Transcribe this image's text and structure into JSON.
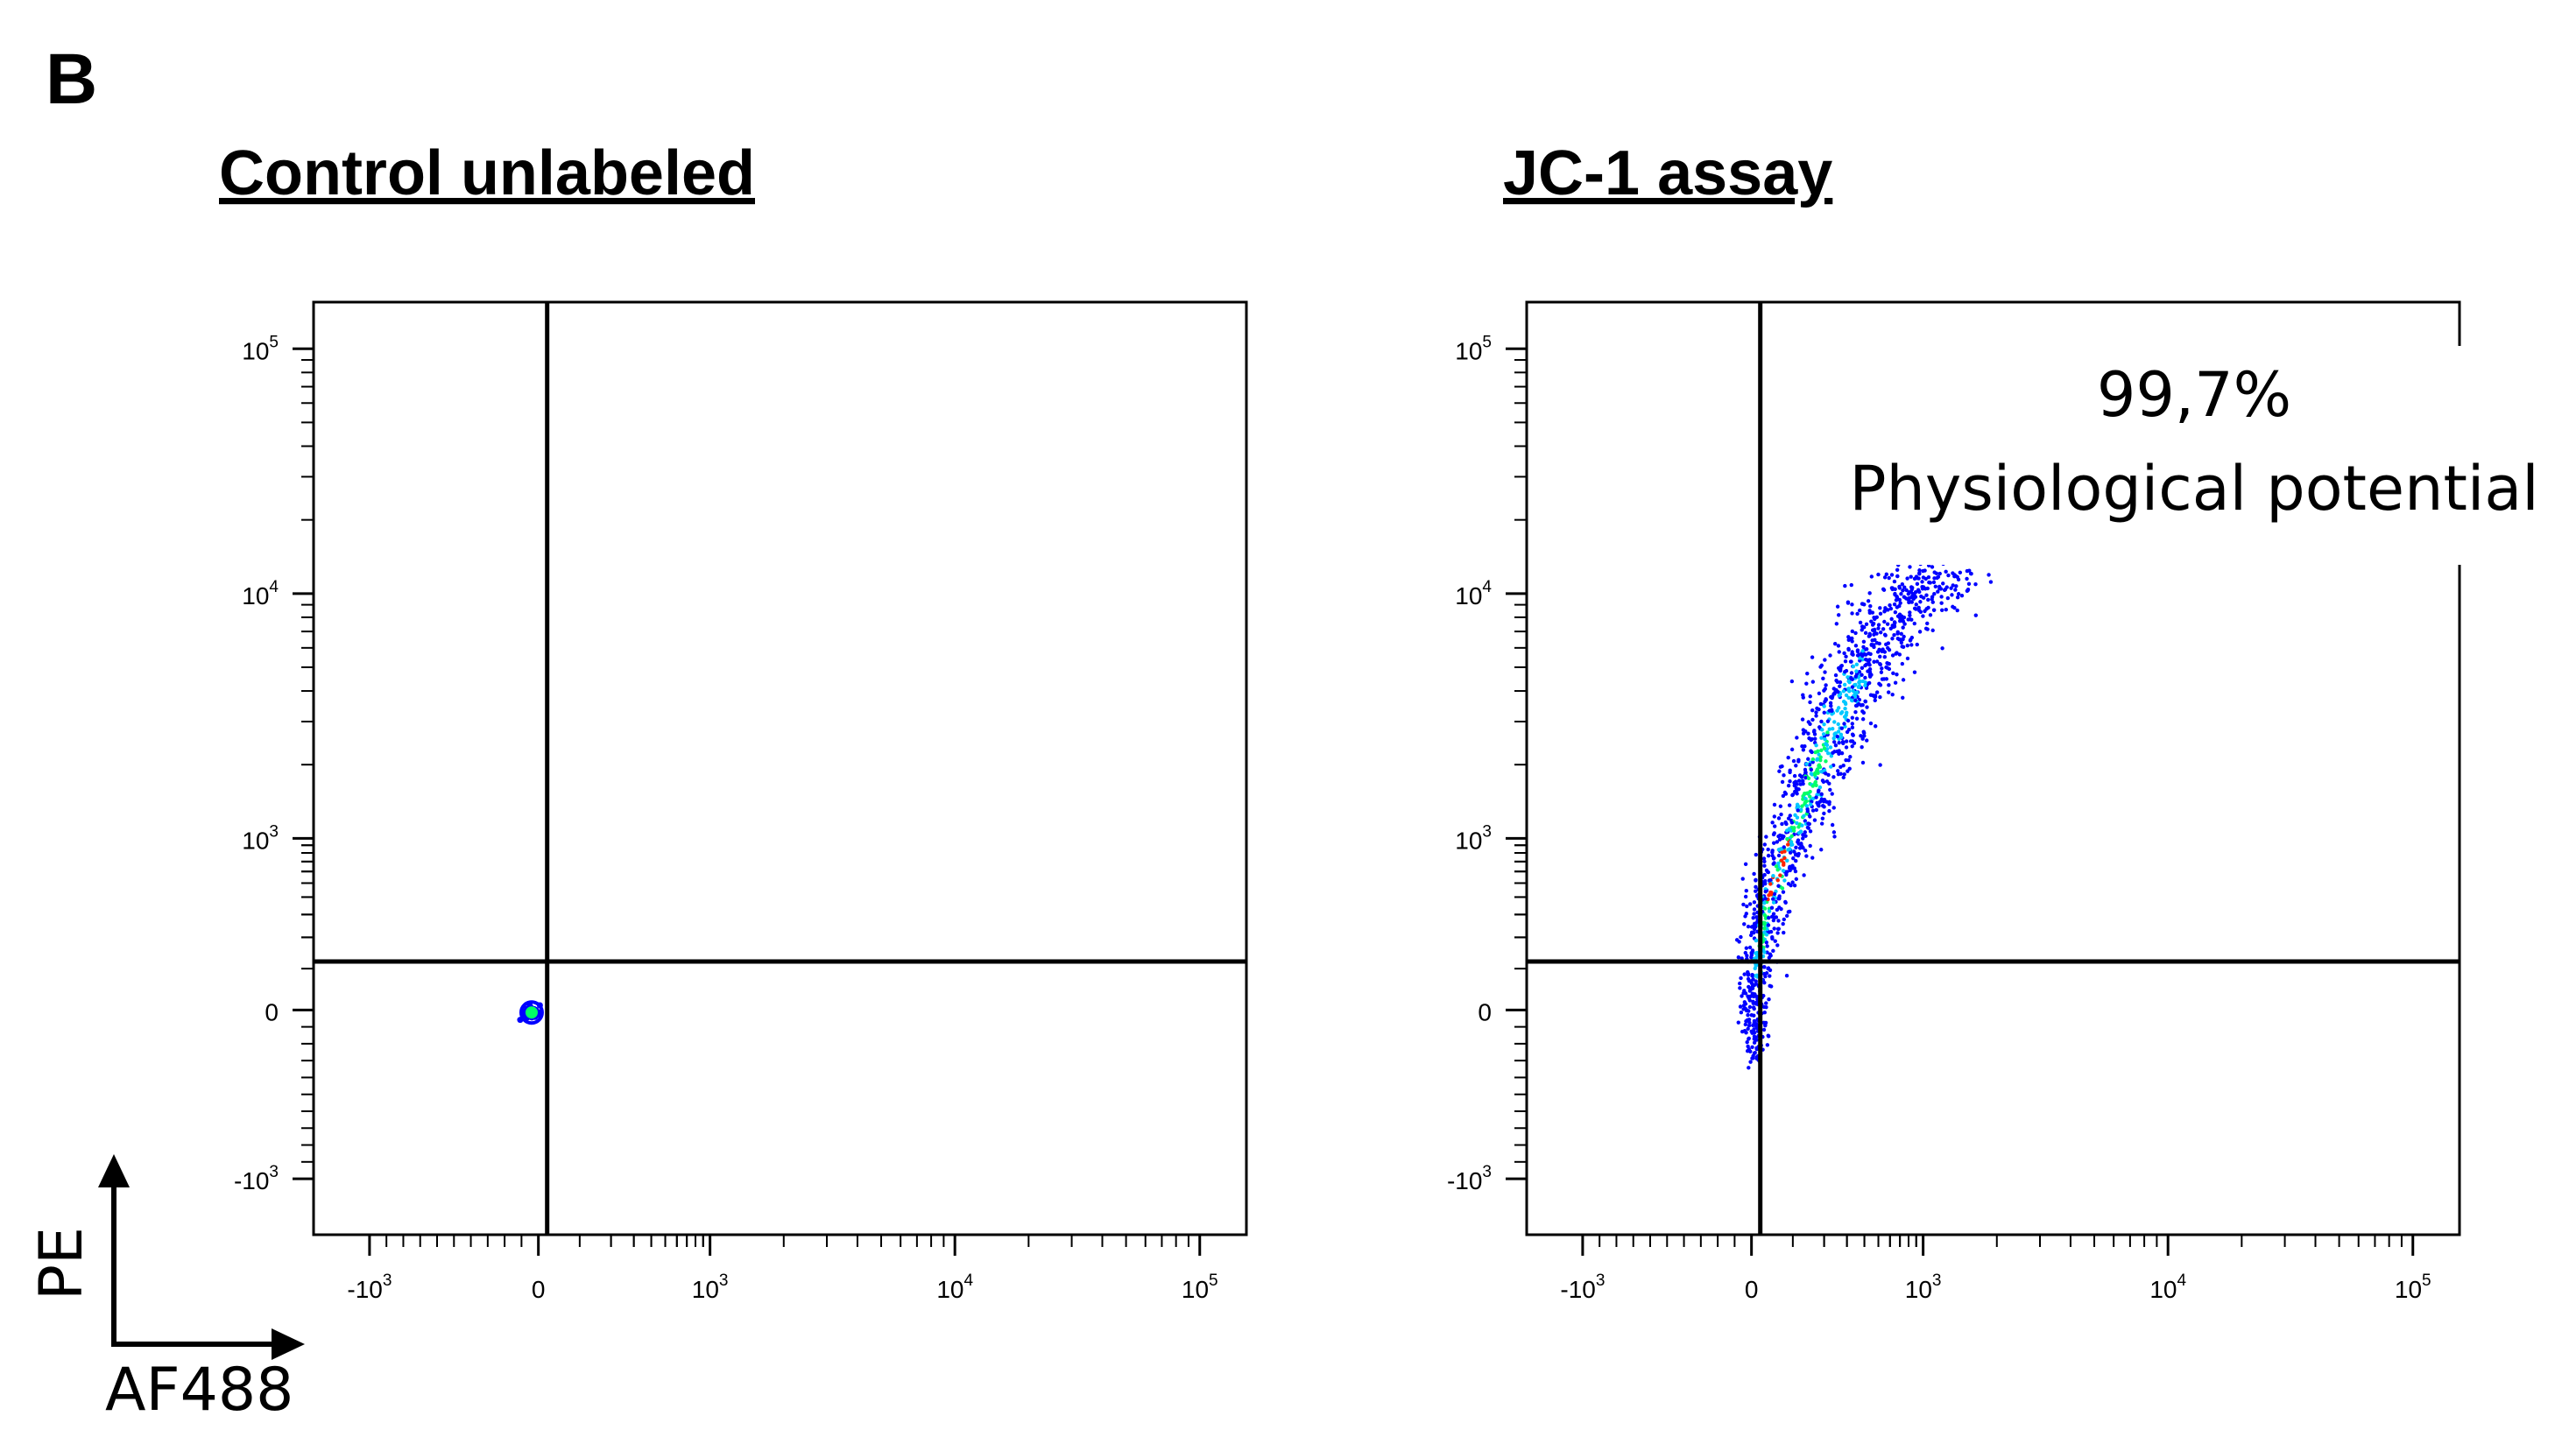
{
  "panel_letter": "B",
  "colors": {
    "axis": "#000000",
    "low_density": "#0000ff",
    "mid_density": "#00c8ff",
    "high_density": "#00ff66",
    "peak_density": "#ff2200"
  },
  "axis_key": {
    "y_label": "PE",
    "x_label": "AF488"
  },
  "chart_data": [
    {
      "type": "scatter",
      "title": "Control unlabeled",
      "xlabel": "AF488",
      "ylabel": "PE",
      "x_scale": "biexponential",
      "y_scale": "biexponential",
      "x_ticks": [
        {
          "value": -1000,
          "base": "-10",
          "exp": "3"
        },
        {
          "value": 0,
          "base": "0",
          "exp": ""
        },
        {
          "value": 1000,
          "base": "10",
          "exp": "3"
        },
        {
          "value": 10000,
          "base": "10",
          "exp": "4"
        },
        {
          "value": 100000,
          "base": "10",
          "exp": "5"
        }
      ],
      "y_ticks": [
        {
          "value": -1000,
          "base": "-10",
          "exp": "3"
        },
        {
          "value": 0,
          "base": "0",
          "exp": ""
        },
        {
          "value": 1000,
          "base": "10",
          "exp": "3"
        },
        {
          "value": 10000,
          "base": "10",
          "exp": "4"
        },
        {
          "value": 100000,
          "base": "10",
          "exp": "5"
        }
      ],
      "quadrant_gate": {
        "x": 20,
        "y": 120
      },
      "populations": [
        {
          "kind": "cluster",
          "x": -40,
          "y": -15,
          "spread_x": 30,
          "spread_y": 30,
          "n": 60
        }
      ],
      "annotations": []
    },
    {
      "type": "scatter",
      "title": "JC-1 assay",
      "xlabel": "AF488",
      "ylabel": "PE",
      "x_scale": "biexponential",
      "y_scale": "biexponential",
      "x_ticks": [
        {
          "value": -1000,
          "base": "-10",
          "exp": "3"
        },
        {
          "value": 0,
          "base": "0",
          "exp": ""
        },
        {
          "value": 1000,
          "base": "10",
          "exp": "3"
        },
        {
          "value": 10000,
          "base": "10",
          "exp": "4"
        },
        {
          "value": 100000,
          "base": "10",
          "exp": "5"
        }
      ],
      "y_ticks": [
        {
          "value": -1000,
          "base": "-10",
          "exp": "3"
        },
        {
          "value": 0,
          "base": "0",
          "exp": ""
        },
        {
          "value": 1000,
          "base": "10",
          "exp": "3"
        },
        {
          "value": 10000,
          "base": "10",
          "exp": "4"
        },
        {
          "value": 100000,
          "base": "10",
          "exp": "5"
        }
      ],
      "quadrant_gate": {
        "x": 20,
        "y": 120
      },
      "populations": [
        {
          "kind": "curve",
          "path": [
            [
              10,
              -300
            ],
            [
              0,
              0
            ],
            [
              30,
              300
            ],
            [
              80,
              800
            ],
            [
              180,
              2000
            ],
            [
              350,
              4500
            ],
            [
              700,
              9000
            ],
            [
              1200,
              13000
            ]
          ],
          "n": 1400
        }
      ],
      "annotations": [
        {
          "percent": "99,7%",
          "label": "Physiological potential"
        }
      ]
    }
  ]
}
